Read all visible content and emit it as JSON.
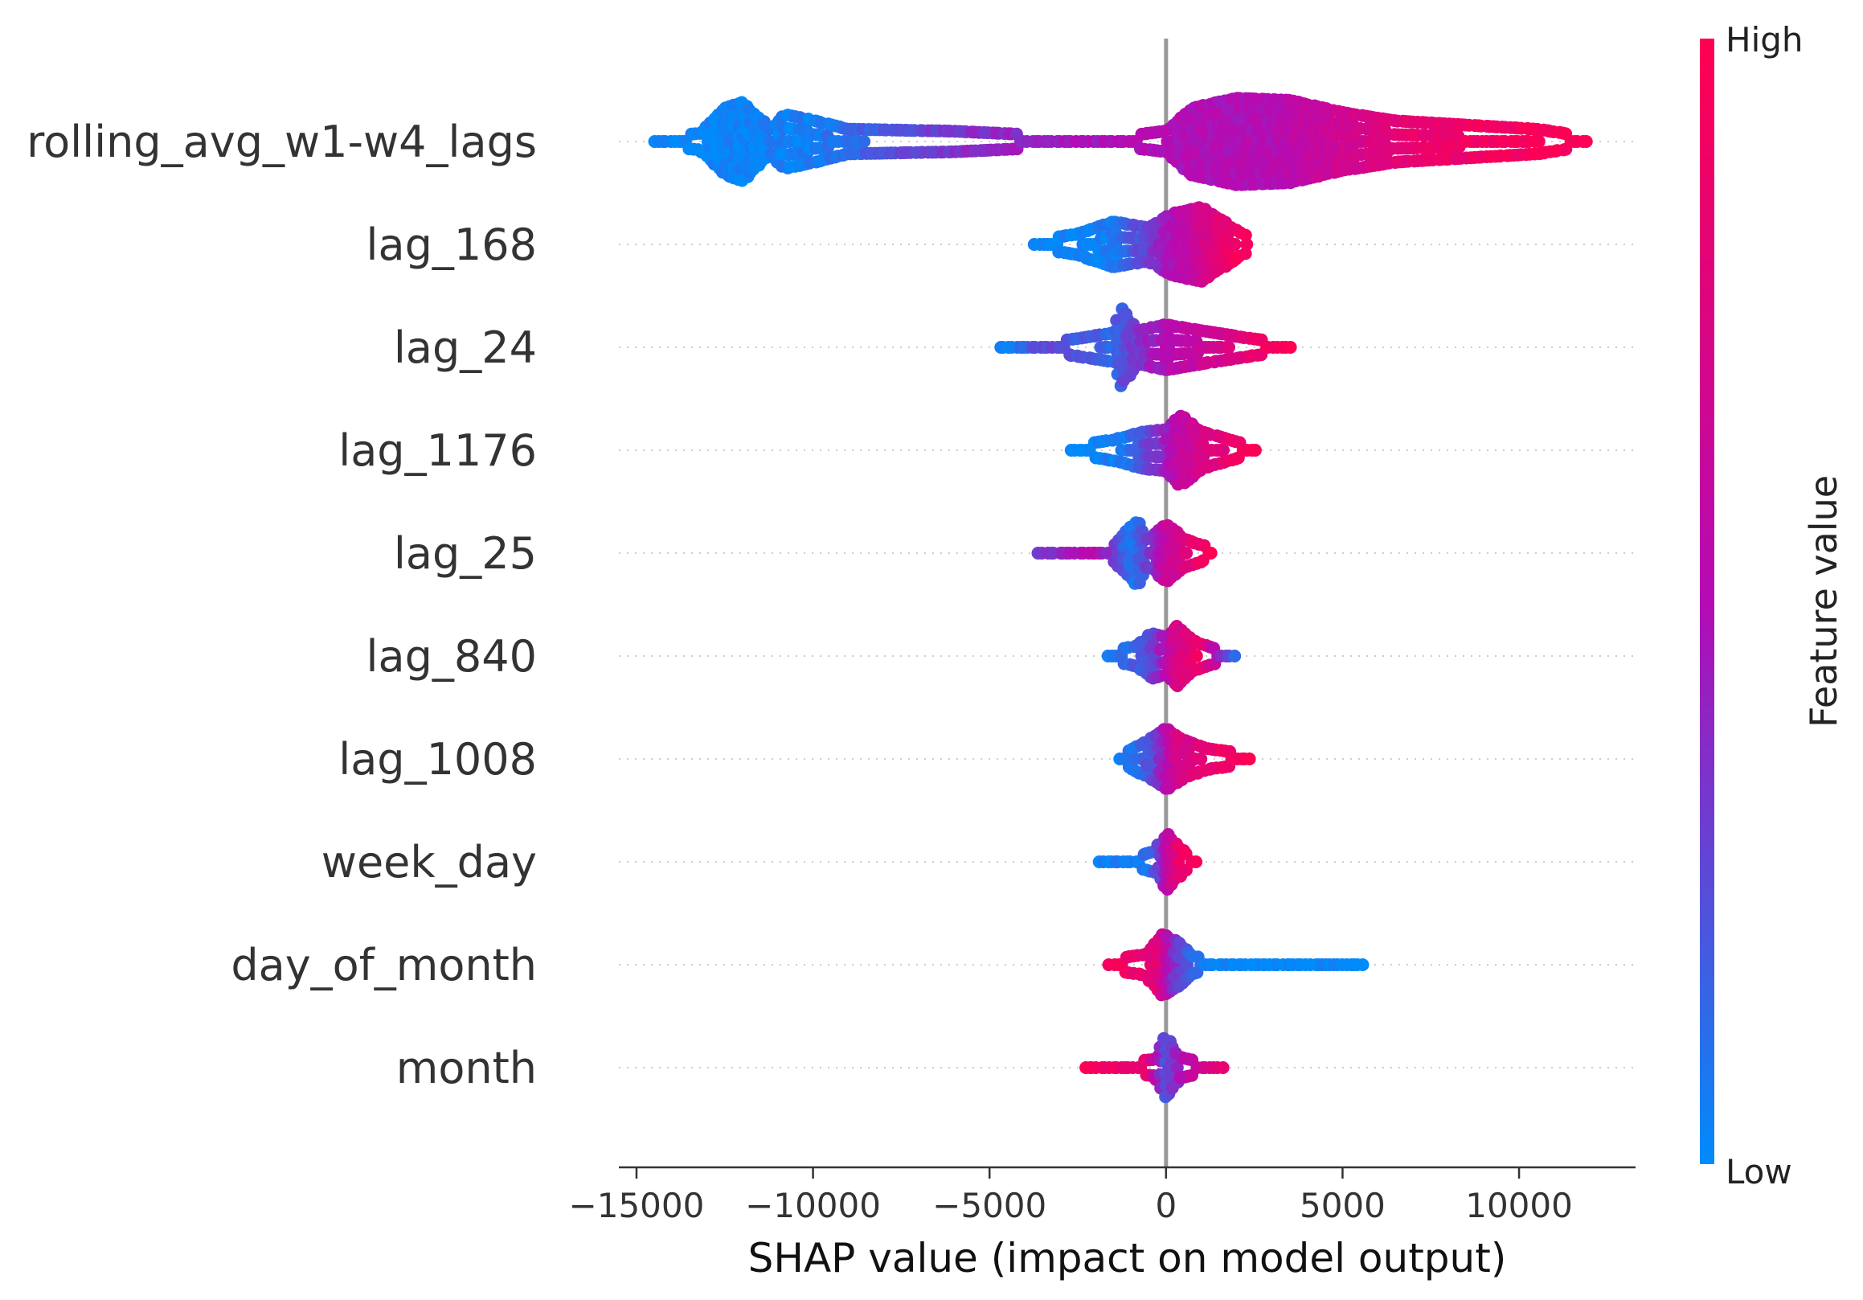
{
  "chart_data": {
    "type": "scatter",
    "subtype": "shap-beeswarm",
    "xlabel": "SHAP value (impact on model output)",
    "xlim": [
      -15500,
      13300
    ],
    "xticks": [
      {
        "value": -15000,
        "label": "−15000"
      },
      {
        "value": -10000,
        "label": "−10000"
      },
      {
        "value": -5000,
        "label": "−5000"
      },
      {
        "value": 0,
        "label": "0"
      },
      {
        "value": 5000,
        "label": "5000"
      },
      {
        "value": 10000,
        "label": "10000"
      }
    ],
    "zero_line": true,
    "colorbar": {
      "title": "Feature value",
      "high_label": "High",
      "low_label": "Low",
      "low_color": "#008bfb",
      "mid_color": "#b40bb4",
      "high_color": "#ff0052"
    },
    "features": [
      {
        "name": "rolling_avg_w1-w4_lags",
        "min": -14500,
        "max": 12000,
        "max_spread": 0.42,
        "profile": [
          [
            -14500,
            0.04
          ],
          [
            -13200,
            0.08
          ],
          [
            -12500,
            0.32
          ],
          [
            -12000,
            0.38
          ],
          [
            -11200,
            0.12
          ],
          [
            -10800,
            0.26
          ],
          [
            -10200,
            0.22
          ],
          [
            -9000,
            0.12
          ],
          [
            -6000,
            0.1
          ],
          [
            -3500,
            0.06
          ],
          [
            -1000,
            0.06
          ],
          [
            0,
            0.1
          ],
          [
            700,
            0.32
          ],
          [
            2000,
            0.42
          ],
          [
            3500,
            0.4
          ],
          [
            5000,
            0.28
          ],
          [
            6500,
            0.2
          ],
          [
            8500,
            0.16
          ],
          [
            10500,
            0.12
          ],
          [
            12000,
            0.04
          ]
        ],
        "color_stops": [
          [
            -14500,
            0.0
          ],
          [
            -10000,
            0.05
          ],
          [
            -6000,
            0.35
          ],
          [
            -1000,
            0.5
          ],
          [
            3000,
            0.5
          ],
          [
            7000,
            0.85
          ],
          [
            12000,
            1.0
          ]
        ]
      },
      {
        "name": "lag_168",
        "min": -3700,
        "max": 2400,
        "max_spread": 0.36,
        "profile": [
          [
            -3700,
            0.04
          ],
          [
            -2500,
            0.1
          ],
          [
            -1500,
            0.22
          ],
          [
            -500,
            0.16
          ],
          [
            200,
            0.3
          ],
          [
            1000,
            0.36
          ],
          [
            1800,
            0.18
          ],
          [
            2400,
            0.05
          ]
        ],
        "color_stops": [
          [
            -3700,
            0.0
          ],
          [
            -1500,
            0.05
          ],
          [
            -300,
            0.35
          ],
          [
            500,
            0.55
          ],
          [
            2400,
            1.0
          ]
        ]
      },
      {
        "name": "lag_24",
        "min": -4700,
        "max": 3500,
        "max_spread": 0.38,
        "profile": [
          [
            -4700,
            0.04
          ],
          [
            -3000,
            0.06
          ],
          [
            -1500,
            0.14
          ],
          [
            -1300,
            0.38
          ],
          [
            -800,
            0.16
          ],
          [
            0,
            0.22
          ],
          [
            1000,
            0.16
          ],
          [
            2500,
            0.08
          ],
          [
            3500,
            0.04
          ]
        ],
        "color_stops": [
          [
            -4700,
            0.0
          ],
          [
            -3500,
            0.25
          ],
          [
            -1500,
            0.15
          ],
          [
            -500,
            0.4
          ],
          [
            500,
            0.55
          ],
          [
            3500,
            1.0
          ]
        ]
      },
      {
        "name": "lag_1176",
        "min": -2700,
        "max": 2600,
        "max_spread": 0.34,
        "profile": [
          [
            -2700,
            0.04
          ],
          [
            -1500,
            0.1
          ],
          [
            -600,
            0.18
          ],
          [
            0,
            0.2
          ],
          [
            400,
            0.34
          ],
          [
            1000,
            0.18
          ],
          [
            2000,
            0.08
          ],
          [
            2600,
            0.04
          ]
        ],
        "color_stops": [
          [
            -2700,
            0.0
          ],
          [
            -1200,
            0.05
          ],
          [
            -200,
            0.35
          ],
          [
            500,
            0.6
          ],
          [
            2600,
            1.0
          ]
        ]
      },
      {
        "name": "lag_25",
        "min": -3600,
        "max": 1400,
        "max_spread": 0.32,
        "profile": [
          [
            -3600,
            0.04
          ],
          [
            -1500,
            0.06
          ],
          [
            -800,
            0.32
          ],
          [
            -500,
            0.12
          ],
          [
            0,
            0.28
          ],
          [
            500,
            0.14
          ],
          [
            1000,
            0.08
          ],
          [
            1400,
            0.04
          ]
        ],
        "color_stops": [
          [
            -3600,
            0.3
          ],
          [
            -2000,
            0.6
          ],
          [
            -900,
            0.05
          ],
          [
            0,
            0.6
          ],
          [
            1400,
            1.0
          ]
        ]
      },
      {
        "name": "lag_840",
        "min": -1600,
        "max": 2000,
        "max_spread": 0.3,
        "profile": [
          [
            -1600,
            0.04
          ],
          [
            -800,
            0.1
          ],
          [
            -400,
            0.22
          ],
          [
            0,
            0.18
          ],
          [
            300,
            0.3
          ],
          [
            800,
            0.14
          ],
          [
            1500,
            0.06
          ],
          [
            2000,
            0.03
          ]
        ],
        "color_stops": [
          [
            -1600,
            0.0
          ],
          [
            -300,
            0.3
          ],
          [
            300,
            0.7
          ],
          [
            1000,
            0.9
          ],
          [
            2000,
            0.05
          ]
        ]
      },
      {
        "name": "lag_1008",
        "min": -1300,
        "max": 2400,
        "max_spread": 0.3,
        "profile": [
          [
            -1300,
            0.04
          ],
          [
            -600,
            0.16
          ],
          [
            -200,
            0.24
          ],
          [
            0,
            0.3
          ],
          [
            500,
            0.18
          ],
          [
            1200,
            0.1
          ],
          [
            2400,
            0.04
          ]
        ],
        "color_stops": [
          [
            -1300,
            0.0
          ],
          [
            -300,
            0.25
          ],
          [
            300,
            0.7
          ],
          [
            2400,
            1.0
          ]
        ]
      },
      {
        "name": "week_day",
        "min": -1900,
        "max": 900,
        "max_spread": 0.28,
        "profile": [
          [
            -1900,
            0.04
          ],
          [
            -800,
            0.06
          ],
          [
            -300,
            0.1
          ],
          [
            0,
            0.28
          ],
          [
            300,
            0.16
          ],
          [
            600,
            0.08
          ],
          [
            900,
            0.04
          ]
        ],
        "color_stops": [
          [
            -1900,
            0.0
          ],
          [
            -400,
            0.1
          ],
          [
            0,
            0.5
          ],
          [
            400,
            0.85
          ],
          [
            900,
            1.0
          ]
        ]
      },
      {
        "name": "day_of_month",
        "min": -1600,
        "max": 5600,
        "max_spread": 0.3,
        "profile": [
          [
            -1600,
            0.05
          ],
          [
            -600,
            0.1
          ],
          [
            -100,
            0.3
          ],
          [
            300,
            0.22
          ],
          [
            800,
            0.08
          ],
          [
            1400,
            0.05
          ],
          [
            2000,
            0.03
          ],
          [
            5600,
            0.03
          ]
        ],
        "color_stops": [
          [
            -1600,
            0.95
          ],
          [
            -200,
            0.8
          ],
          [
            300,
            0.3
          ],
          [
            1200,
            0.0
          ],
          [
            5600,
            0.0
          ]
        ]
      },
      {
        "name": "month",
        "min": -2300,
        "max": 1600,
        "max_spread": 0.3,
        "profile": [
          [
            -2300,
            0.05
          ],
          [
            -1000,
            0.06
          ],
          [
            -300,
            0.08
          ],
          [
            0,
            0.3
          ],
          [
            400,
            0.1
          ],
          [
            1000,
            0.06
          ],
          [
            1600,
            0.04
          ]
        ],
        "color_stops": [
          [
            -2300,
            0.95
          ],
          [
            -500,
            0.85
          ],
          [
            0,
            0.2
          ],
          [
            500,
            0.5
          ],
          [
            1600,
            0.9
          ]
        ]
      }
    ]
  }
}
